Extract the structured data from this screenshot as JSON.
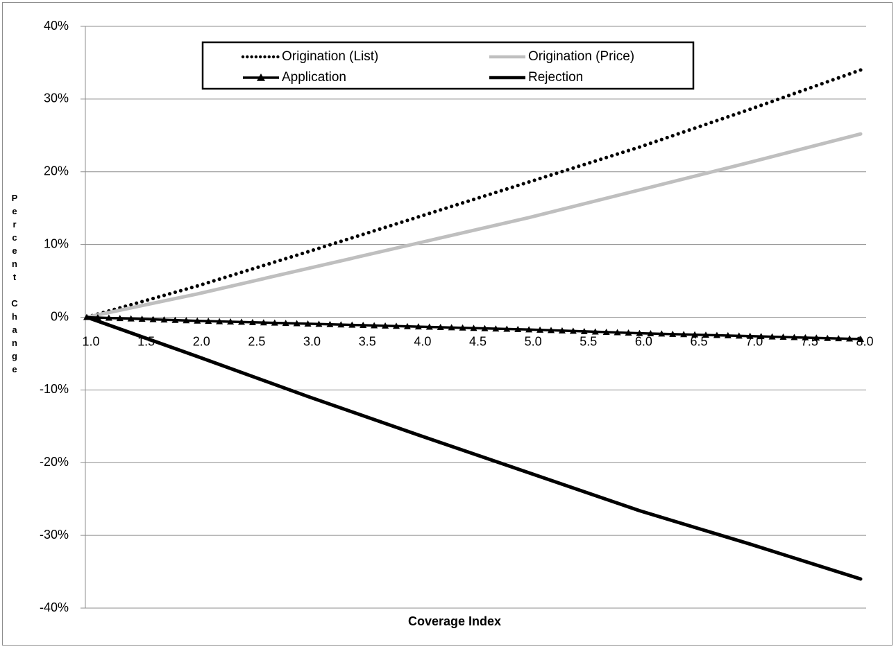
{
  "chart_data": {
    "type": "line",
    "title": "",
    "xlabel": "Coverage Index",
    "ylabel": "Percent Change",
    "ylabel_lines": [
      "P",
      "e",
      "r",
      "c",
      "e",
      "n",
      "t",
      "",
      "C",
      "h",
      "a",
      "n",
      "g",
      "e"
    ],
    "xlim": [
      1.0,
      8.0
    ],
    "ylim": [
      -40,
      40
    ],
    "x_ticks": [
      "1.0",
      "1.5",
      "2.0",
      "2.5",
      "3.0",
      "3.5",
      "4.0",
      "4.5",
      "5.0",
      "5.5",
      "6.0",
      "6.5",
      "7.0",
      "7.5",
      "8.0"
    ],
    "y_ticks": [
      "-40%",
      "-30%",
      "-20%",
      "-10%",
      "0%",
      "10%",
      "20%",
      "30%",
      "40%"
    ],
    "y_tick_values": [
      -40,
      -30,
      -20,
      -10,
      0,
      10,
      20,
      30,
      40
    ],
    "grid": true,
    "legend_position": "top",
    "series": [
      {
        "name": "Origination (List)",
        "style": "dotted",
        "color": "#000000",
        "x": [
          1.0,
          2.0,
          3.0,
          4.0,
          5.0,
          6.0,
          7.0,
          8.0
        ],
        "y": [
          0,
          4.3,
          9.0,
          13.8,
          18.6,
          23.4,
          28.6,
          34.0
        ]
      },
      {
        "name": "Origination (Price)",
        "style": "solid",
        "color": "#bfbfbf",
        "x": [
          1.0,
          2.0,
          3.0,
          4.0,
          5.0,
          6.0,
          7.0,
          8.0
        ],
        "y": [
          0,
          3.2,
          6.7,
          10.2,
          13.7,
          17.5,
          21.3,
          25.2
        ]
      },
      {
        "name": "Application",
        "style": "triangle-markers",
        "color": "#000000",
        "x": [
          1.0,
          2.0,
          3.0,
          4.0,
          5.0,
          6.0,
          7.0,
          8.0
        ],
        "y": [
          0,
          -0.5,
          -0.9,
          -1.3,
          -1.7,
          -2.2,
          -2.6,
          -3.0
        ]
      },
      {
        "name": "Rejection",
        "style": "solid-thick",
        "color": "#000000",
        "x": [
          1.0,
          2.0,
          3.0,
          4.0,
          5.0,
          6.0,
          7.0,
          8.0
        ],
        "y": [
          0,
          -5.4,
          -10.9,
          -16.2,
          -21.4,
          -26.6,
          -31.2,
          -36.0
        ]
      }
    ]
  }
}
